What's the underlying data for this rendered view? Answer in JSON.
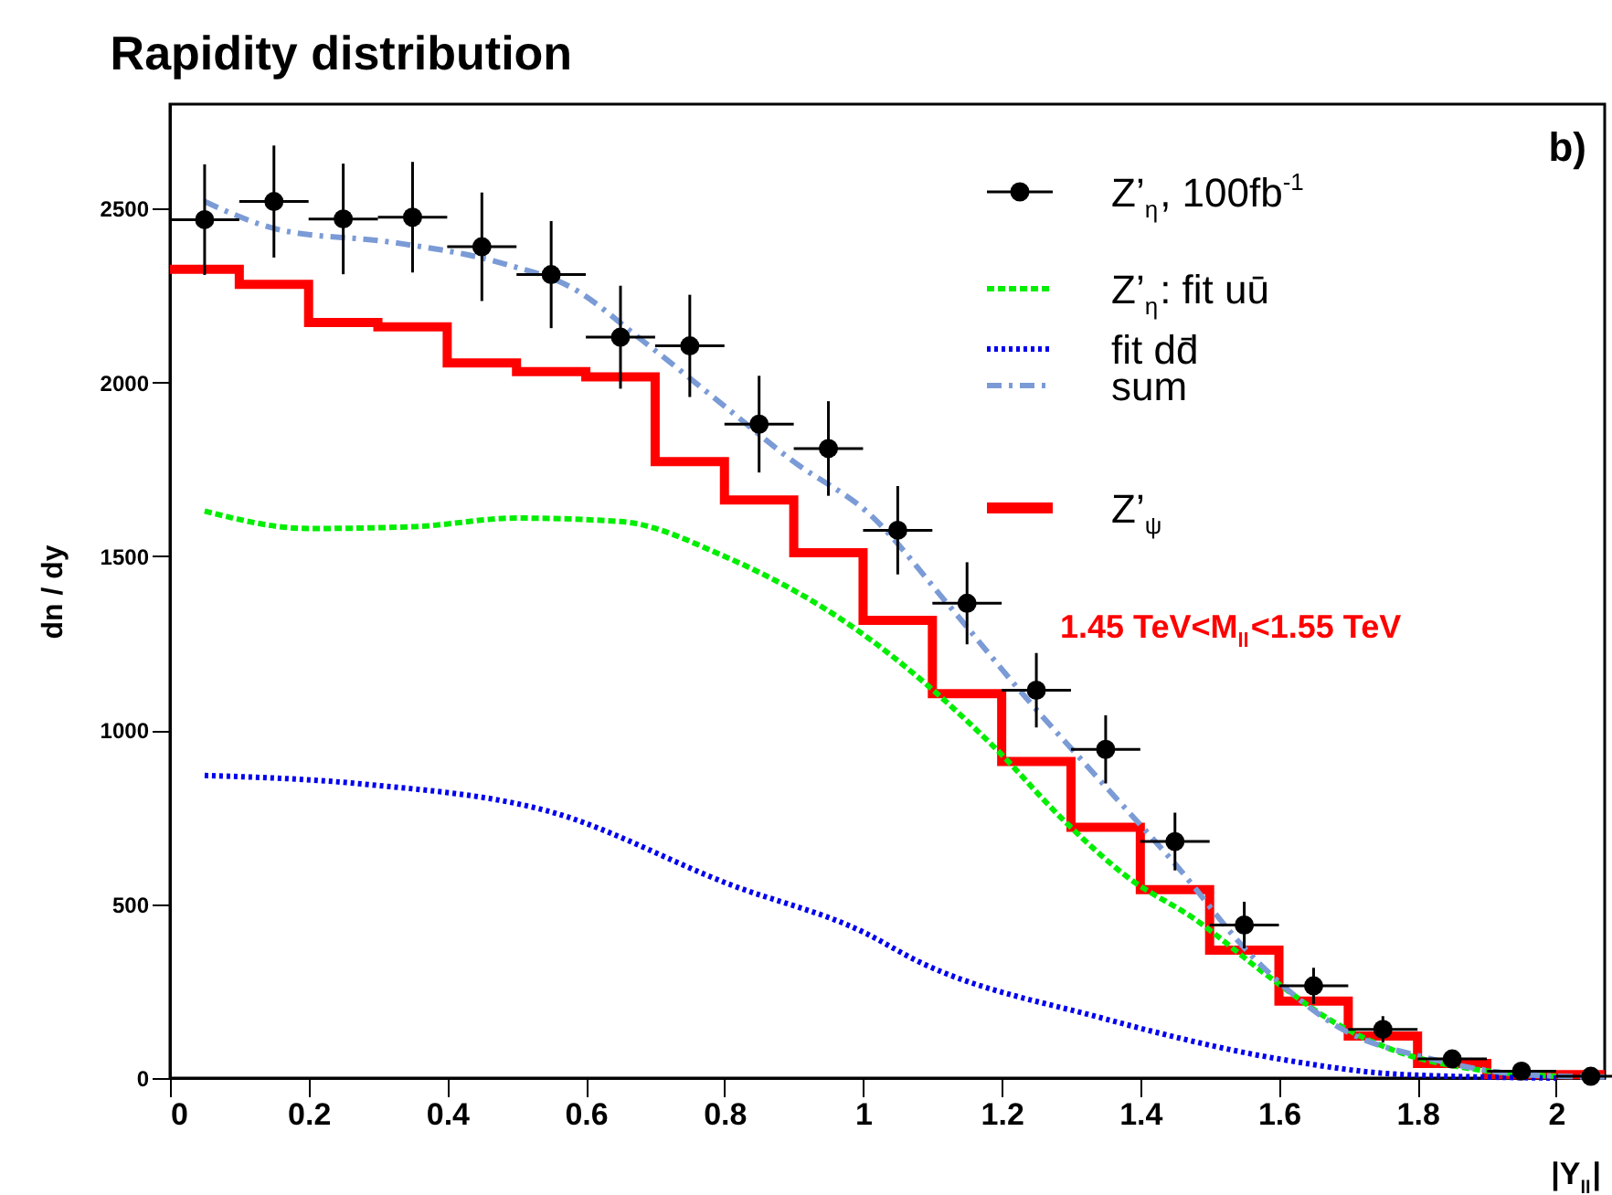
{
  "chart_data": {
    "type": "scatter",
    "title": "Rapidity distribution",
    "xlabel": "|Y$_{ll}$|",
    "ylabel": "dn / dy",
    "xlim": [
      0,
      2.07
    ],
    "ylim": [
      0,
      2800
    ],
    "xticks": [
      0,
      0.2,
      0.4,
      0.6,
      0.8,
      1,
      1.2,
      1.4,
      1.6,
      1.8,
      2
    ],
    "yticks": [
      0,
      500,
      1000,
      1500,
      2000,
      2500
    ],
    "grid": false,
    "legend": "top right",
    "annotations": [
      "b)",
      "1.45 TeV<M$_{ll}$<1.55 TeV"
    ],
    "series": [
      {
        "name": "Z’$_{η}$, 100fb$^{-1}$",
        "marker": "circle",
        "color": "#000000",
        "x": [
          0.05,
          0.15,
          0.25,
          0.35,
          0.45,
          0.55,
          0.65,
          0.75,
          0.85,
          0.95,
          1.05,
          1.15,
          1.25,
          1.35,
          1.45,
          1.55,
          1.65,
          1.75,
          1.85,
          1.95,
          2.05
        ],
        "values": [
          2468,
          2520,
          2470,
          2475,
          2390,
          2310,
          2130,
          2105,
          1880,
          1810,
          1575,
          1365,
          1115,
          945,
          680,
          440,
          265,
          140,
          55,
          20,
          5
        ],
        "errors": [
          159,
          161,
          159,
          159,
          156,
          154,
          148,
          147,
          139,
          136,
          127,
          118,
          107,
          98,
          83,
          67,
          52,
          38,
          24,
          14,
          7
        ],
        "xerrors": [
          0.05,
          0.05,
          0.05,
          0.05,
          0.05,
          0.05,
          0.05,
          0.05,
          0.05,
          0.05,
          0.05,
          0.05,
          0.05,
          0.05,
          0.05,
          0.05,
          0.05,
          0.05,
          0.05,
          0.05,
          0.05
        ]
      },
      {
        "name": "Z’$_{η}$: fit uū",
        "type": "line",
        "color": "#00ee00",
        "line_style": "dashed",
        "x": [
          0.05,
          0.2,
          0.35,
          0.5,
          0.65,
          0.8,
          0.99,
          1.19,
          1.29,
          1.38,
          1.48,
          1.58,
          1.68,
          1.78,
          1.88,
          2.0
        ],
        "values": [
          1630,
          1580,
          1585,
          1610,
          1600,
          1500,
          1290,
          950,
          740,
          580,
          455,
          300,
          160,
          70,
          26,
          5
        ]
      },
      {
        "name": "fit dd̄",
        "type": "line",
        "color": "#0000ee",
        "line_style": "dotted",
        "x": [
          0.05,
          0.28,
          0.55,
          0.81,
          1.0,
          1.08,
          1.34,
          1.6,
          1.78,
          2.0
        ],
        "values": [
          870,
          845,
          765,
          555,
          420,
          335,
          175,
          55,
          10,
          0
        ]
      },
      {
        "name": "sum",
        "type": "line",
        "color": "#7b9bd6",
        "line_style": "dashdot",
        "x": [
          0.05,
          0.16,
          0.32,
          0.48,
          0.58,
          0.68,
          0.79,
          0.9,
          1.01,
          1.12,
          1.23,
          1.34,
          1.45,
          1.56,
          1.69,
          1.82,
          1.96,
          2.07
        ],
        "values": [
          2520,
          2438,
          2403,
          2342,
          2272,
          2123,
          1948,
          1772,
          1620,
          1368,
          1105,
          860,
          616,
          353,
          142,
          55,
          9,
          3
        ]
      },
      {
        "name": "Z’$_{ψ}$",
        "type": "histogram",
        "color": "#ff0000",
        "bins": [
          0,
          0.1,
          0.2,
          0.3,
          0.4,
          0.5,
          0.6,
          0.7,
          0.8,
          0.9,
          1.0,
          1.1,
          1.2,
          1.3,
          1.4,
          1.5,
          1.6,
          1.7,
          1.8,
          1.9,
          2.0,
          2.07
        ],
        "values": [
          2325,
          2282,
          2172,
          2160,
          2056,
          2031,
          2016,
          1772,
          1662,
          1510,
          1316,
          1105,
          910,
          721,
          542,
          368,
          221,
          121,
          42,
          10,
          10
        ]
      }
    ]
  }
}
